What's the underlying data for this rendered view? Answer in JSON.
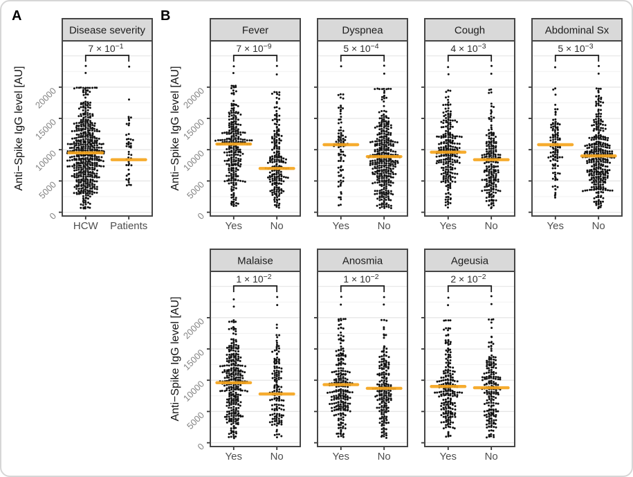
{
  "figure": {
    "panel_a_label": "A",
    "panel_b_label": "B"
  },
  "style": {
    "header_fill": "#d9d9d9",
    "frame_color": "#454545",
    "grid_major_color": "#e4e4e4",
    "grid_minor_color": "#f2f2f2",
    "point_color": "#111111",
    "median_color": "#f5a51d",
    "tick_label_color": "#848484",
    "category_label_color": "#4d4d4d",
    "p_value_color": "#2b2b2b",
    "title_color": "#1c1c1c",
    "axis_title_color": "#111111"
  },
  "chart_data": [
    {
      "type": "scatter",
      "variant": "beeswarm",
      "panel": "A",
      "title": "Disease severity",
      "p_value": {
        "mantissa": "7",
        "base": "10",
        "exponent": "−1",
        "display": "7 × 10^−1"
      },
      "ylabel": "Anti−Spike IgG level [AU]",
      "ylim": [
        0,
        24000
      ],
      "yticks": [
        0,
        5000,
        10000,
        15000,
        20000
      ],
      "grid": "major+minor",
      "categories": [
        "HCW",
        "Patients"
      ],
      "groups": [
        {
          "label": "HCW",
          "n": 540,
          "median": 9500,
          "min": 500,
          "max": 23400
        },
        {
          "label": "Patients",
          "n": 46,
          "median": 8400,
          "min": 4200,
          "max": 23300
        }
      ]
    },
    {
      "type": "scatter",
      "variant": "beeswarm",
      "panel": "B",
      "title": "Fever",
      "p_value": {
        "mantissa": "7",
        "base": "10",
        "exponent": "−9",
        "display": "7 × 10^−9"
      },
      "ylabel": "Anti−Spike IgG level [AU]",
      "ylim": [
        0,
        24000
      ],
      "yticks": [
        0,
        5000,
        10000,
        15000,
        20000
      ],
      "grid": "major+minor",
      "categories": [
        "Yes",
        "No"
      ],
      "groups": [
        {
          "label": "Yes",
          "n": 285,
          "median": 10900,
          "min": 700,
          "max": 23300
        },
        {
          "label": "No",
          "n": 215,
          "median": 7000,
          "min": 600,
          "max": 23400
        }
      ]
    },
    {
      "type": "scatter",
      "variant": "beeswarm",
      "panel": "B",
      "title": "Dyspnea",
      "p_value": {
        "mantissa": "5",
        "base": "10",
        "exponent": "−4",
        "display": "5 × 10^−4"
      },
      "ylabel": "Anti−Spike IgG level [AU]",
      "ylim": [
        0,
        24000
      ],
      "yticks": [
        0,
        5000,
        10000,
        15000,
        20000
      ],
      "grid": "major+minor",
      "categories": [
        "Yes",
        "No"
      ],
      "groups": [
        {
          "label": "Yes",
          "n": 95,
          "median": 10800,
          "min": 900,
          "max": 23300
        },
        {
          "label": "No",
          "n": 380,
          "median": 8900,
          "min": 600,
          "max": 23400
        }
      ]
    },
    {
      "type": "scatter",
      "variant": "beeswarm",
      "panel": "B",
      "title": "Cough",
      "p_value": {
        "mantissa": "4",
        "base": "10",
        "exponent": "−3",
        "display": "4 × 10^−3"
      },
      "ylabel": "Anti−Spike IgG level [AU]",
      "ylim": [
        0,
        24000
      ],
      "yticks": [
        0,
        5000,
        10000,
        15000,
        20000
      ],
      "grid": "major+minor",
      "categories": [
        "Yes",
        "No"
      ],
      "groups": [
        {
          "label": "Yes",
          "n": 265,
          "median": 9600,
          "min": 700,
          "max": 23200
        },
        {
          "label": "No",
          "n": 215,
          "median": 8400,
          "min": 600,
          "max": 23400
        }
      ]
    },
    {
      "type": "scatter",
      "variant": "beeswarm",
      "panel": "B",
      "title": "Abdominal Sx",
      "p_value": {
        "mantissa": "5",
        "base": "10",
        "exponent": "−3",
        "display": "5 × 10^−3"
      },
      "ylabel": "Anti−Spike IgG level [AU]",
      "ylim": [
        0,
        24000
      ],
      "yticks": [
        0,
        5000,
        10000,
        15000,
        20000
      ],
      "grid": "major+minor",
      "categories": [
        "Yes",
        "No"
      ],
      "groups": [
        {
          "label": "Yes",
          "n": 115,
          "median": 10800,
          "min": 2300,
          "max": 23200
        },
        {
          "label": "No",
          "n": 360,
          "median": 9000,
          "min": 600,
          "max": 23400
        }
      ]
    },
    {
      "type": "scatter",
      "variant": "beeswarm",
      "panel": "B",
      "title": "Malaise",
      "p_value": {
        "mantissa": "1",
        "base": "10",
        "exponent": "−2",
        "display": "1 × 10^−2"
      },
      "ylabel": "Anti−Spike IgG level [AU]",
      "ylim": [
        0,
        24000
      ],
      "yticks": [
        0,
        5000,
        10000,
        15000,
        20000
      ],
      "grid": "major+minor",
      "categories": [
        "Yes",
        "No"
      ],
      "groups": [
        {
          "label": "Yes",
          "n": 320,
          "median": 9600,
          "min": 700,
          "max": 22900
        },
        {
          "label": "No",
          "n": 150,
          "median": 7800,
          "min": 700,
          "max": 23300
        }
      ]
    },
    {
      "type": "scatter",
      "variant": "beeswarm",
      "panel": "B",
      "title": "Anosmia",
      "p_value": {
        "mantissa": "1",
        "base": "10",
        "exponent": "−2",
        "display": "1 × 10^−2"
      },
      "ylabel": "Anti−Spike IgG level [AU]",
      "ylim": [
        0,
        24000
      ],
      "yticks": [
        0,
        5000,
        10000,
        15000,
        20000
      ],
      "grid": "major+minor",
      "categories": [
        "Yes",
        "No"
      ],
      "groups": [
        {
          "label": "Yes",
          "n": 250,
          "median": 9300,
          "min": 800,
          "max": 23300
        },
        {
          "label": "No",
          "n": 200,
          "median": 8700,
          "min": 700,
          "max": 23300
        }
      ]
    },
    {
      "type": "scatter",
      "variant": "beeswarm",
      "panel": "B",
      "title": "Ageusia",
      "p_value": {
        "mantissa": "2",
        "base": "10",
        "exponent": "−2",
        "display": "2 × 10^−2"
      },
      "ylabel": "Anti−Spike IgG level [AU]",
      "ylim": [
        0,
        24000
      ],
      "yticks": [
        0,
        5000,
        10000,
        15000,
        20000
      ],
      "grid": "major+minor",
      "categories": [
        "Yes",
        "No"
      ],
      "groups": [
        {
          "label": "Yes",
          "n": 225,
          "median": 9000,
          "min": 900,
          "max": 23200
        },
        {
          "label": "No",
          "n": 205,
          "median": 8800,
          "min": 700,
          "max": 23400
        }
      ]
    }
  ]
}
